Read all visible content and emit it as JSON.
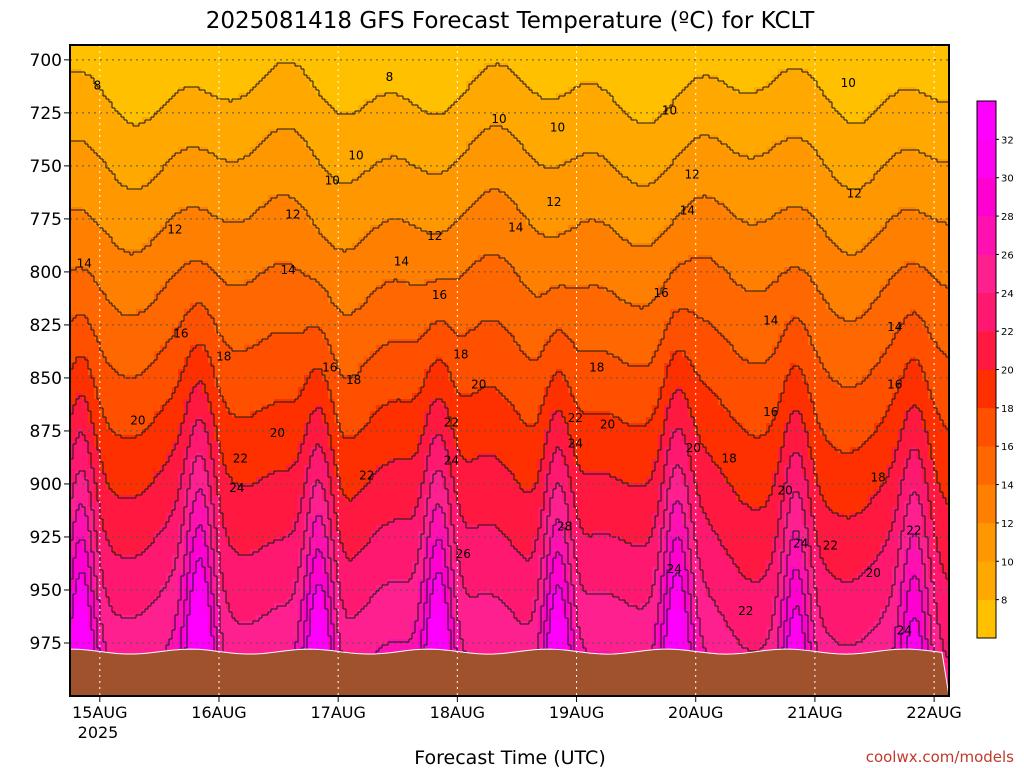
{
  "chart_data": {
    "type": "heatmap",
    "title": "2025081418 GFS Forecast Temperature (ºC) for KCLT",
    "xlabel": "Forecast Time (UTC)",
    "ylabel": "",
    "x_tick_labels": [
      "15AUG",
      "16AUG",
      "17AUG",
      "18AUG",
      "19AUG",
      "20AUG",
      "21AUG",
      "22AUG"
    ],
    "x_year_label": "2025",
    "x_range_days": [
      14.75,
      22.125
    ],
    "x_ticks_days": [
      15,
      16,
      17,
      18,
      19,
      20,
      21,
      22
    ],
    "y_tick_labels": [
      "700",
      "725",
      "750",
      "775",
      "800",
      "825",
      "850",
      "875",
      "900",
      "925",
      "950",
      "975"
    ],
    "y_ticks": [
      700,
      725,
      750,
      775,
      800,
      825,
      850,
      875,
      900,
      925,
      950,
      975
    ],
    "y_range": [
      693,
      1000
    ],
    "y_unit": "hPa",
    "grid": true,
    "colorbar_labels": [
      "8",
      "10",
      "12",
      "14",
      "16",
      "18",
      "20",
      "22",
      "24",
      "26",
      "28",
      "30",
      "32"
    ],
    "colorbar_levels": [
      8,
      10,
      12,
      14,
      16,
      18,
      20,
      22,
      24,
      26,
      28,
      30,
      32
    ],
    "colorbar_colors": [
      "#ffc000",
      "#ffa800",
      "#ff9800",
      "#ff8000",
      "#ff6800",
      "#ff5000",
      "#ff3000",
      "#ff1840",
      "#ff1870",
      "#ff2090",
      "#ff10b0",
      "#ff00d0",
      "#ff00f0",
      "#ff00ff"
    ],
    "contour_labels": [
      {
        "text": "8",
        "day": 14.98,
        "p": 712
      },
      {
        "text": "8",
        "day": 17.43,
        "p": 708
      },
      {
        "text": "10",
        "day": 17.15,
        "p": 745
      },
      {
        "text": "10",
        "day": 16.95,
        "p": 757
      },
      {
        "text": "10",
        "day": 18.35,
        "p": 728
      },
      {
        "text": "10",
        "day": 18.84,
        "p": 732
      },
      {
        "text": "10",
        "day": 19.78,
        "p": 724
      },
      {
        "text": "10",
        "day": 21.28,
        "p": 711
      },
      {
        "text": "12",
        "day": 15.63,
        "p": 780
      },
      {
        "text": "12",
        "day": 16.62,
        "p": 773
      },
      {
        "text": "12",
        "day": 17.81,
        "p": 783
      },
      {
        "text": "12",
        "day": 18.81,
        "p": 767
      },
      {
        "text": "12",
        "day": 19.97,
        "p": 754
      },
      {
        "text": "12",
        "day": 21.33,
        "p": 763
      },
      {
        "text": "14",
        "day": 14.87,
        "p": 796
      },
      {
        "text": "14",
        "day": 16.58,
        "p": 799
      },
      {
        "text": "14",
        "day": 17.53,
        "p": 795
      },
      {
        "text": "14",
        "day": 18.49,
        "p": 779
      },
      {
        "text": "14",
        "day": 19.93,
        "p": 771
      },
      {
        "text": "14",
        "day": 20.63,
        "p": 823
      },
      {
        "text": "14",
        "day": 21.67,
        "p": 826
      },
      {
        "text": "16",
        "day": 15.68,
        "p": 829
      },
      {
        "text": "16",
        "day": 16.93,
        "p": 845
      },
      {
        "text": "16",
        "day": 17.85,
        "p": 811
      },
      {
        "text": "16",
        "day": 19.71,
        "p": 810
      },
      {
        "text": "16",
        "day": 20.63,
        "p": 866
      },
      {
        "text": "16",
        "day": 21.67,
        "p": 853
      },
      {
        "text": "18",
        "day": 16.04,
        "p": 840
      },
      {
        "text": "18",
        "day": 17.13,
        "p": 851
      },
      {
        "text": "18",
        "day": 18.03,
        "p": 839
      },
      {
        "text": "18",
        "day": 19.17,
        "p": 845
      },
      {
        "text": "18",
        "day": 20.28,
        "p": 888
      },
      {
        "text": "18",
        "day": 21.53,
        "p": 897
      },
      {
        "text": "20",
        "day": 15.32,
        "p": 870
      },
      {
        "text": "20",
        "day": 16.49,
        "p": 876
      },
      {
        "text": "20",
        "day": 18.18,
        "p": 853
      },
      {
        "text": "20",
        "day": 19.26,
        "p": 872
      },
      {
        "text": "20",
        "day": 19.98,
        "p": 883
      },
      {
        "text": "20",
        "day": 20.75,
        "p": 903
      },
      {
        "text": "20",
        "day": 21.49,
        "p": 942
      },
      {
        "text": "22",
        "day": 16.18,
        "p": 888
      },
      {
        "text": "22",
        "day": 17.24,
        "p": 896
      },
      {
        "text": "22",
        "day": 17.95,
        "p": 871
      },
      {
        "text": "22",
        "day": 18.99,
        "p": 869
      },
      {
        "text": "22",
        "day": 20.42,
        "p": 960
      },
      {
        "text": "22",
        "day": 21.13,
        "p": 929
      },
      {
        "text": "22",
        "day": 21.83,
        "p": 922
      },
      {
        "text": "24",
        "day": 16.15,
        "p": 902
      },
      {
        "text": "24",
        "day": 17.95,
        "p": 889
      },
      {
        "text": "24",
        "day": 18.99,
        "p": 881
      },
      {
        "text": "24",
        "day": 19.82,
        "p": 940
      },
      {
        "text": "24",
        "day": 20.88,
        "p": 928
      },
      {
        "text": "24",
        "day": 21.75,
        "p": 969
      },
      {
        "text": "26",
        "day": 18.05,
        "p": 933
      },
      {
        "text": "28",
        "day": 18.9,
        "p": 920
      }
    ],
    "surface_color": "#a0522d"
  },
  "footer": {
    "credit": "coolwx.com/models"
  }
}
